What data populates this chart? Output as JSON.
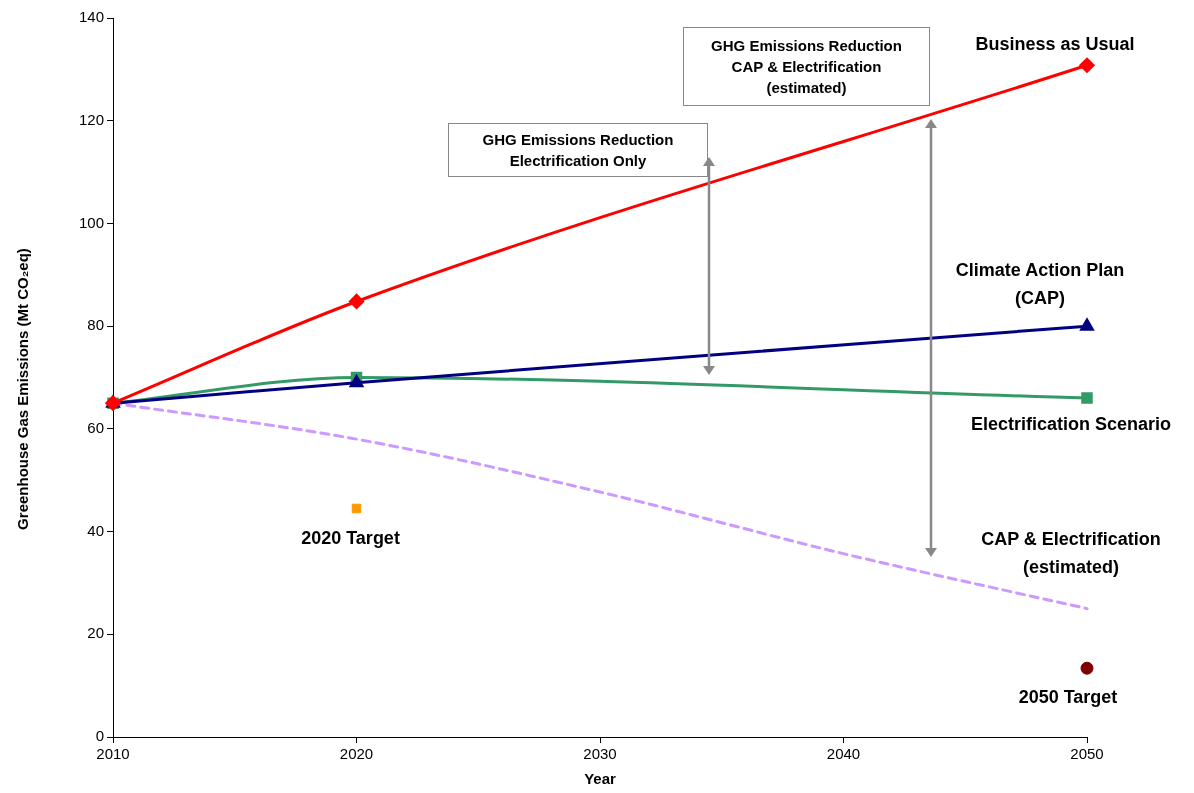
{
  "chart_data": {
    "type": "line",
    "xlabel": "Year",
    "ylabel": "Greenhouse Gas Emissions (Mt CO₂eq)",
    "xlim": [
      2010,
      2050
    ],
    "xticks": [
      2010,
      2020,
      2030,
      2040,
      2050
    ],
    "ylim": [
      0,
      140
    ],
    "yticks": [
      0,
      20,
      40,
      60,
      80,
      100,
      120,
      140
    ],
    "series": [
      {
        "name": "Business as Usual",
        "color": "#ff0000",
        "type": "line",
        "marker": "diamond",
        "x": [
          2010,
          2020,
          2050
        ],
        "values": [
          65,
          84.8,
          130.8
        ]
      },
      {
        "name": "Climate Action Plan (CAP)",
        "color": "#000080",
        "type": "line",
        "marker": "triangle",
        "x": [
          2010,
          2020,
          2050
        ],
        "values": [
          65,
          69,
          80
        ]
      },
      {
        "name": "Electrification Scenario",
        "color": "#339966",
        "type": "line",
        "marker": "square",
        "x": [
          2010,
          2020,
          2050
        ],
        "values": [
          65,
          70,
          66
        ]
      },
      {
        "name": "CAP & Electrification (estimated)",
        "color": "#cc99ff",
        "type": "line",
        "marker": "none",
        "line_style": "dashed",
        "x": [
          2010,
          2020,
          2030,
          2040,
          2050
        ],
        "values": [
          65,
          58,
          47.7,
          35.7,
          25
        ]
      },
      {
        "name": "2020 Target",
        "color": "#ff9900",
        "type": "scatter",
        "marker": "square",
        "x": [
          2020
        ],
        "values": [
          44.5
        ]
      },
      {
        "name": "2050 Target",
        "color": "#800000",
        "type": "scatter",
        "marker": "circle",
        "x": [
          2050
        ],
        "values": [
          13.4
        ]
      }
    ],
    "annotations": [
      "GHG Emissions Reduction Electrification Only",
      "GHG Emissions Reduction CAP & Electrification (estimated)"
    ]
  }
}
